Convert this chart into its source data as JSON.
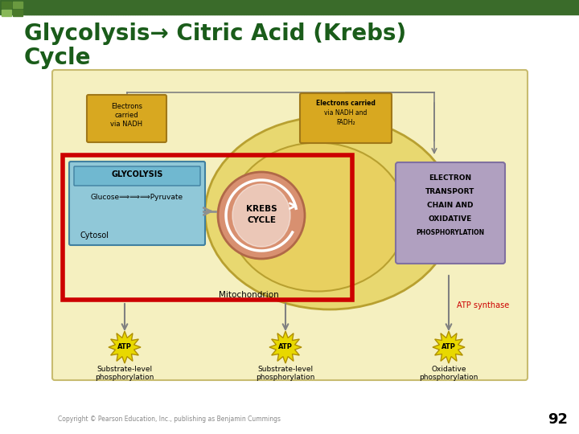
{
  "title_line1": "Glycolysis→ Citric Acid (Krebs)",
  "title_line2": "Cycle",
  "title_color": "#1a5c1a",
  "title_fontsize": 20,
  "bg_color": "#ffffff",
  "header_bar_color": "#3a6b2a",
  "slide_number": "92",
  "diagram_bg": "#f5f0c0",
  "glycolysis_box_color": "#90c8d8",
  "krebs_box_color": "#d89070",
  "electron_box_color": "#b0a0c0",
  "electrons_nadh_box": "#d8a820",
  "electrons_nadh_fadh2_box": "#d8a820",
  "atp_starburst_color": "#e8d800",
  "red_highlight_color": "#cc0000",
  "copyright_text": "Copyright © Pearson Education, Inc., publishing as Benjamin Cummings",
  "atp_synthase_color": "#cc0000",
  "mito_outer_color": "#e8d870",
  "mito_inner_color": "#e8d060",
  "line_color": "#808080"
}
